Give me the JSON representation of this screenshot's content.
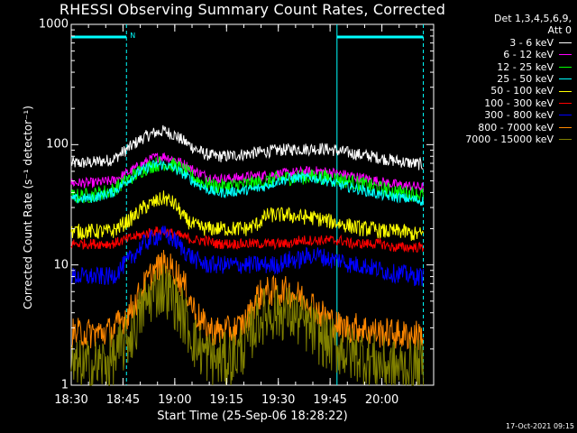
{
  "chart_data": {
    "type": "line",
    "title": "RHESSI Observing Summary Count Rates, Corrected",
    "xlabel": "Start Time (25-Sep-06 18:28:22)",
    "ylabel": "Corrected Count Rate (s⁻¹ detector⁻¹)",
    "yscale": "log",
    "ylim": [
      1,
      1000
    ],
    "xlim_minutes": [
      18.5,
      20.25
    ],
    "x_tick_labels": [
      "18:30",
      "18:45",
      "19:00",
      "19:15",
      "19:30",
      "19:45",
      "20:00"
    ],
    "y_tick_labels": [
      "1",
      "10",
      "100",
      "1000"
    ],
    "legend_header": [
      "Det 1,3,4,5,6,9,",
      "Att 0"
    ],
    "vertical_markers": [
      18.7667,
      19.7833,
      20.2
    ],
    "flag_bars": [
      {
        "from": 18.5,
        "to": 18.7667,
        "label": "N"
      },
      {
        "from": 19.7833,
        "to": 20.2,
        "label": ""
      }
    ],
    "timestamp": "17-Oct-2021 09:15",
    "x_times": [
      18.5,
      18.6,
      18.7,
      18.8,
      18.85,
      18.9,
      18.95,
      19.0,
      19.05,
      19.1,
      19.15,
      19.2,
      19.25,
      19.3,
      19.35,
      19.4,
      19.45,
      19.5,
      19.55,
      19.6,
      19.65,
      19.7,
      19.75,
      19.8,
      19.85,
      19.9,
      19.95,
      20.0,
      20.05,
      20.1,
      20.15,
      20.2
    ],
    "series": [
      {
        "name": "3 - 6 keV",
        "color": "#ffffff",
        "noise": 0.12,
        "values": [
          70,
          71,
          75,
          100,
          115,
          125,
          130,
          120,
          105,
          92,
          83,
          80,
          80,
          82,
          84,
          86,
          88,
          90,
          91,
          92,
          92,
          93,
          91,
          88,
          85,
          82,
          80,
          77,
          74,
          72,
          70,
          68
        ]
      },
      {
        "name": "6 - 12 keV",
        "color": "#ff00ff",
        "noise": 0.1,
        "values": [
          48,
          48,
          50,
          62,
          70,
          78,
          80,
          75,
          68,
          60,
          55,
          52,
          52,
          53,
          54,
          55,
          56,
          57,
          58,
          59,
          60,
          60,
          59,
          57,
          55,
          53,
          51,
          49,
          47,
          46,
          45,
          44
        ]
      },
      {
        "name": "12 - 25 keV",
        "color": "#00ff00",
        "noise": 0.15,
        "values": [
          37,
          38,
          42,
          55,
          63,
          68,
          70,
          67,
          60,
          52,
          47,
          45,
          45,
          46,
          47,
          48,
          50,
          52,
          53,
          54,
          54,
          54,
          53,
          51,
          49,
          47,
          45,
          43,
          41,
          40,
          39,
          38
        ]
      },
      {
        "name": "25 - 50 keV",
        "color": "#00ffff",
        "noise": 0.1,
        "values": [
          35,
          36,
          40,
          55,
          62,
          68,
          68,
          63,
          56,
          48,
          43,
          40,
          40,
          41,
          42,
          43,
          46,
          50,
          52,
          53,
          53,
          52,
          49,
          46,
          44,
          42,
          40,
          38,
          37,
          36,
          35,
          34
        ]
      },
      {
        "name": "50 - 100 keV",
        "color": "#ffff00",
        "noise": 0.15,
        "values": [
          19,
          19,
          19,
          25,
          30,
          33,
          36,
          32,
          24,
          21,
          20,
          20,
          20,
          20,
          20,
          22,
          26,
          26,
          26,
          25,
          25,
          24,
          23,
          22,
          21,
          20,
          20,
          19,
          19,
          19,
          18,
          18
        ]
      },
      {
        "name": "100 - 300 keV",
        "color": "#ff0000",
        "noise": 0.1,
        "values": [
          15,
          15,
          15,
          17,
          18,
          19,
          19,
          18,
          17,
          16,
          16,
          15,
          15,
          15,
          15,
          15,
          15,
          15,
          15,
          16,
          16,
          16,
          16,
          16,
          15,
          15,
          15,
          15,
          14,
          14,
          14,
          14
        ]
      },
      {
        "name": "300 - 800 keV",
        "color": "#0000ff",
        "noise": 0.18,
        "values": [
          8,
          8,
          8,
          12,
          15,
          17,
          18,
          16,
          13,
          11,
          10,
          10,
          10,
          10,
          10,
          10,
          10,
          10,
          11,
          11,
          12,
          12,
          11,
          11,
          10,
          10,
          9.5,
          9,
          8.5,
          8.5,
          8,
          8
        ]
      },
      {
        "name": "800 - 7000 keV",
        "color": "#ff8800",
        "noise": 0.3,
        "values": [
          2.7,
          2.7,
          2.8,
          4.5,
          6.5,
          9,
          10,
          9,
          6.5,
          4,
          3,
          2.8,
          2.8,
          2.9,
          3.5,
          5.5,
          6,
          6,
          6,
          5.5,
          5,
          4,
          3.5,
          3,
          3,
          3,
          2.8,
          2.7,
          2.7,
          2.6,
          2.6,
          2.6
        ]
      },
      {
        "name": "7000 - 15000 keV",
        "color": "#808000",
        "noise": 0.55,
        "values": [
          1.4,
          1.4,
          1.6,
          2.8,
          4.5,
          6,
          6.5,
          5,
          3.5,
          2.2,
          1.8,
          1.6,
          1.6,
          1.8,
          2.3,
          3.5,
          4,
          4,
          4,
          3.5,
          3,
          2.5,
          2.2,
          2,
          1.8,
          1.8,
          1.6,
          1.5,
          1.4,
          1.4,
          1.4,
          1.4
        ]
      }
    ]
  }
}
